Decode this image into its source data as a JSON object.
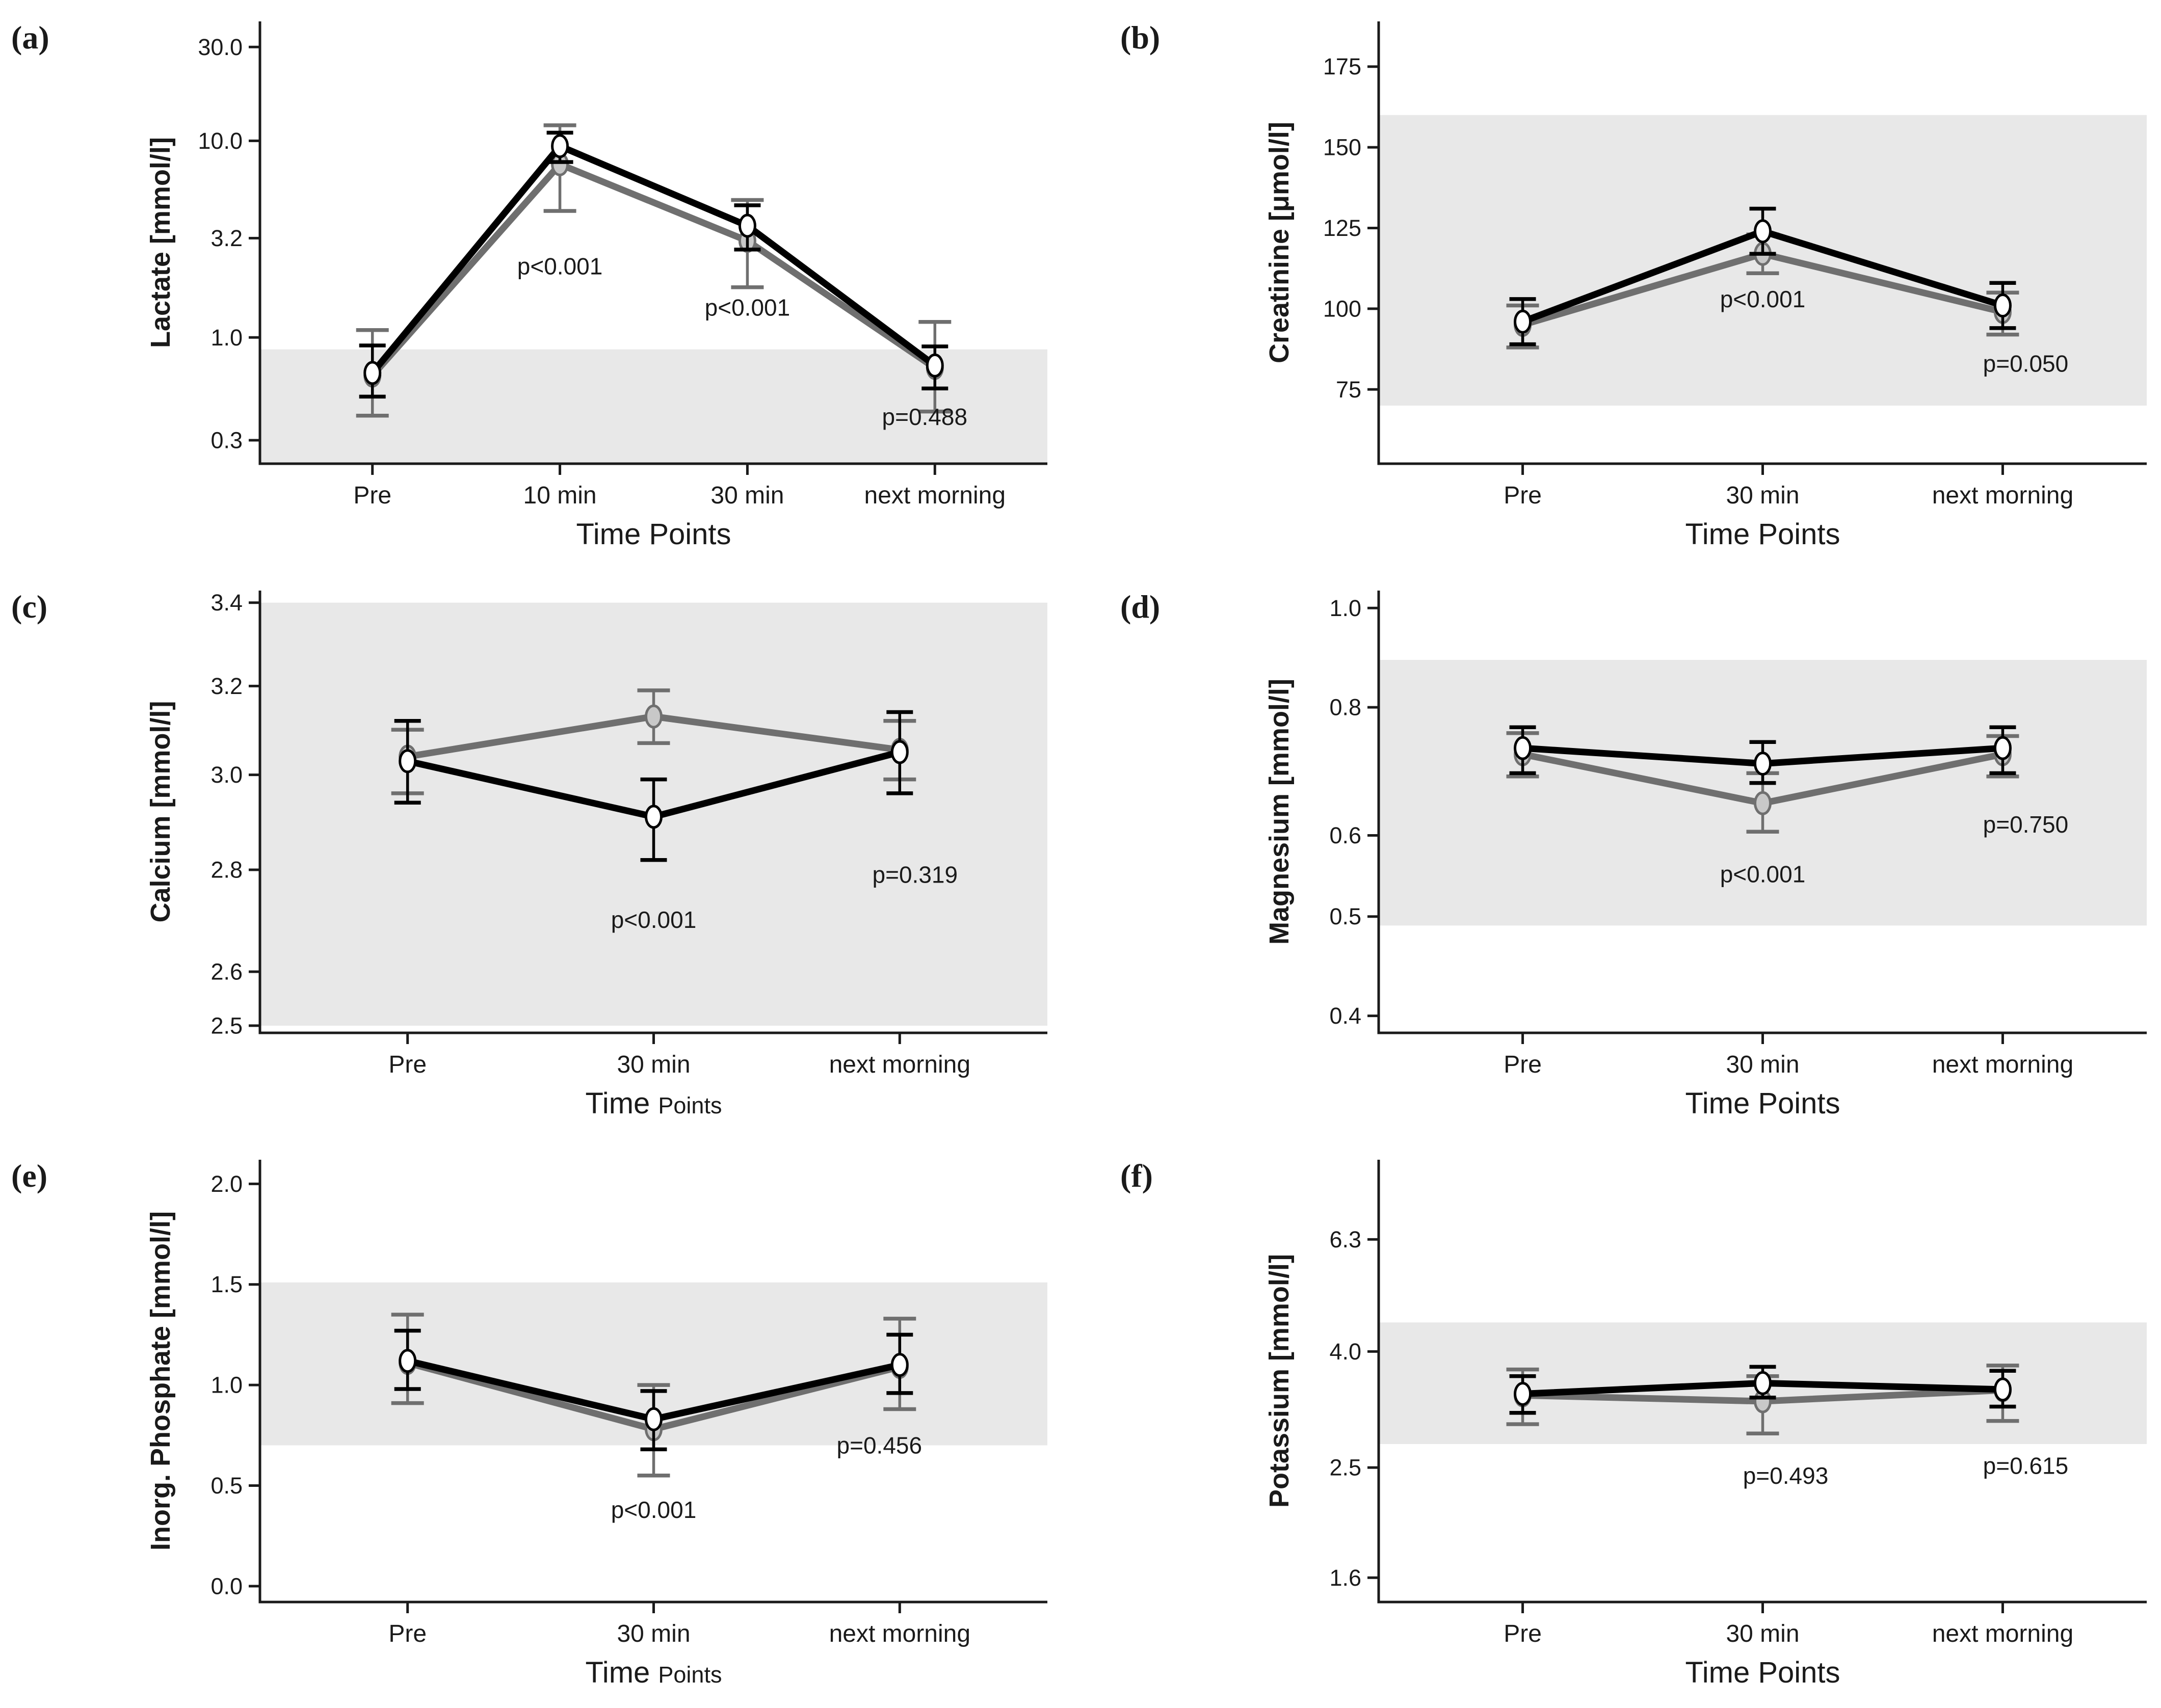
{
  "figure": {
    "background_color": "#ffffff",
    "band_color": "#e8e8e8",
    "axis_color": "#1a1a1a",
    "x_axis_title": "Time Points",
    "x_categories_full": [
      "Pre",
      "10 min",
      "30 min",
      "next morning"
    ]
  },
  "chart_data": [
    {
      "type": "line",
      "panel_label": "(a)",
      "ylabel": "Lactate [mmol/l]",
      "xlabel": "Time Points",
      "xlabel_mixed": false,
      "yscale": "log",
      "ylim": [
        0.228,
        40.5
      ],
      "yticks": [
        0.3,
        1.0,
        3.2,
        10.0,
        30.0
      ],
      "ytick_labels": [
        "0.3",
        "1.0",
        "3.2",
        "10.0",
        "30.0"
      ],
      "categories": [
        "Pre",
        "10 min",
        "30 min",
        "next morning"
      ],
      "normal_range_band": [
        0.228,
        0.87
      ],
      "series": [
        {
          "name": "gray",
          "color": "#6f6f6f",
          "marker_fill": "#c8c8c8",
          "values": [
            0.64,
            7.6,
            3.1,
            0.7
          ],
          "err_lo": [
            0.4,
            4.4,
            1.8,
            0.42
          ],
          "err_hi": [
            1.09,
            12.0,
            5.0,
            1.2
          ]
        },
        {
          "name": "black",
          "color": "#000000",
          "marker_fill": "#ffffff",
          "values": [
            0.66,
            9.4,
            3.7,
            0.72
          ],
          "err_lo": [
            0.5,
            7.8,
            2.8,
            0.55
          ],
          "err_hi": [
            0.91,
            11.0,
            4.7,
            0.9
          ]
        }
      ],
      "annotations": [
        {
          "text": "p<0.001",
          "cat": 1,
          "y": 2.3,
          "dx": 0
        },
        {
          "text": "p<0.001",
          "cat": 2,
          "y": 1.42,
          "dx": 0
        },
        {
          "text": "p=0.488",
          "cat": 3,
          "y": 0.395,
          "dx": -20
        }
      ]
    },
    {
      "type": "line",
      "panel_label": "(b)",
      "ylabel": "Creatinine [μmol/l]",
      "xlabel": "Time Points",
      "xlabel_mixed": false,
      "yscale": "linear",
      "ylim": [
        52,
        189
      ],
      "yticks": [
        75,
        100,
        125,
        150,
        175
      ],
      "ytick_labels": [
        "75",
        "100",
        "125",
        "150",
        "175"
      ],
      "categories": [
        "Pre",
        "30 min",
        "next morning"
      ],
      "normal_range_band": [
        70,
        160
      ],
      "series": [
        {
          "name": "gray",
          "color": "#6f6f6f",
          "marker_fill": "#c8c8c8",
          "values": [
            95,
            117,
            99
          ],
          "err_lo": [
            88,
            111,
            92
          ],
          "err_hi": [
            101,
            123,
            105
          ]
        },
        {
          "name": "black",
          "color": "#000000",
          "marker_fill": "#ffffff",
          "values": [
            96,
            124,
            101
          ],
          "err_lo": [
            89,
            117,
            94
          ],
          "err_hi": [
            103,
            131,
            108
          ]
        }
      ],
      "annotations": [
        {
          "text": "p<0.001",
          "cat": 1,
          "y": 103,
          "dx": 0
        },
        {
          "text": "p=0.050",
          "cat": 2,
          "y": 83,
          "dx": 45
        }
      ]
    },
    {
      "type": "line",
      "panel_label": "(c)",
      "ylabel": "Calcium [mmol/l]",
      "xlabel": "Time Points",
      "xlabel_mixed": true,
      "yscale": "log",
      "ylim": [
        2.487,
        3.43
      ],
      "yticks": [
        2.5,
        2.6,
        2.8,
        3.0,
        3.2,
        3.4
      ],
      "ytick_labels": [
        "2.5",
        "2.6",
        "2.8",
        "3.0",
        "3.2",
        "3.4"
      ],
      "categories": [
        "Pre",
        "30 min",
        "next morning"
      ],
      "normal_range_band": [
        2.5,
        3.4
      ],
      "series": [
        {
          "name": "gray",
          "color": "#6f6f6f",
          "marker_fill": "#c8c8c8",
          "values": [
            3.04,
            3.13,
            3.055
          ],
          "err_lo": [
            2.96,
            3.07,
            2.99
          ],
          "err_hi": [
            3.1,
            3.19,
            3.12
          ]
        },
        {
          "name": "black",
          "color": "#000000",
          "marker_fill": "#ffffff",
          "values": [
            3.03,
            2.91,
            3.05
          ],
          "err_lo": [
            2.94,
            2.82,
            2.96
          ],
          "err_hi": [
            3.12,
            2.99,
            3.14
          ]
        }
      ],
      "annotations": [
        {
          "text": "p<0.001",
          "cat": 1,
          "y": 2.7,
          "dx": 0
        },
        {
          "text": "p=0.319",
          "cat": 2,
          "y": 2.79,
          "dx": 30
        }
      ]
    },
    {
      "type": "line",
      "panel_label": "(d)",
      "ylabel": "Magnesium [mmol/l]",
      "xlabel": "Time Points",
      "xlabel_mixed": false,
      "yscale": "log",
      "ylim": [
        0.385,
        1.04
      ],
      "yticks": [
        0.4,
        0.5,
        0.6,
        0.8,
        1.0
      ],
      "ytick_labels": [
        "0.4",
        "0.5",
        "0.6",
        "0.8",
        "1.0"
      ],
      "categories": [
        "Pre",
        "30 min",
        "next morning"
      ],
      "normal_range_band": [
        0.49,
        0.89
      ],
      "series": [
        {
          "name": "gray",
          "color": "#6f6f6f",
          "marker_fill": "#c8c8c8",
          "values": [
            0.72,
            0.645,
            0.72
          ],
          "err_lo": [
            0.685,
            0.605,
            0.685
          ],
          "err_hi": [
            0.755,
            0.69,
            0.75
          ]
        },
        {
          "name": "black",
          "color": "#000000",
          "marker_fill": "#ffffff",
          "values": [
            0.73,
            0.705,
            0.73
          ],
          "err_lo": [
            0.69,
            0.675,
            0.69
          ],
          "err_hi": [
            0.765,
            0.74,
            0.765
          ]
        }
      ],
      "annotations": [
        {
          "text": "p<0.001",
          "cat": 1,
          "y": 0.55,
          "dx": 0
        },
        {
          "text": "p=0.750",
          "cat": 2,
          "y": 0.615,
          "dx": 45
        }
      ]
    },
    {
      "type": "line",
      "panel_label": "(e)",
      "ylabel": "Inorg. Phosphate [mmol/l]",
      "xlabel": "Time Points",
      "xlabel_mixed": true,
      "yscale": "linear",
      "ylim": [
        -0.079,
        2.12
      ],
      "yticks": [
        0.0,
        0.5,
        1.0,
        1.5,
        2.0
      ],
      "ytick_labels": [
        "0.0",
        "0.5",
        "1.0",
        "1.5",
        "2.0"
      ],
      "categories": [
        "Pre",
        "30 min",
        "next morning"
      ],
      "normal_range_band": [
        0.7,
        1.51
      ],
      "series": [
        {
          "name": "gray",
          "color": "#6f6f6f",
          "marker_fill": "#c8c8c8",
          "values": [
            1.11,
            0.78,
            1.09
          ],
          "err_lo": [
            0.91,
            0.55,
            0.88
          ],
          "err_hi": [
            1.35,
            1.0,
            1.33
          ]
        },
        {
          "name": "black",
          "color": "#000000",
          "marker_fill": "#ffffff",
          "values": [
            1.12,
            0.83,
            1.1
          ],
          "err_lo": [
            0.98,
            0.68,
            0.96
          ],
          "err_hi": [
            1.27,
            0.97,
            1.25
          ]
        }
      ],
      "annotations": [
        {
          "text": "p<0.001",
          "cat": 1,
          "y": 0.38,
          "dx": 0
        },
        {
          "text": "p=0.456",
          "cat": 2,
          "y": 0.7,
          "dx": -40
        }
      ]
    },
    {
      "type": "line",
      "panel_label": "(f)",
      "ylabel": "Potassium [mmol/l]",
      "xlabel": "Time Points",
      "xlabel_mixed": false,
      "yscale": "log",
      "ylim": [
        1.45,
        8.7
      ],
      "yticks": [
        1.6,
        2.5,
        4.0,
        6.3
      ],
      "ytick_labels": [
        "1.6",
        "2.5",
        "4.0",
        "6.3"
      ],
      "categories": [
        "Pre",
        "30 min",
        "next morning"
      ],
      "normal_range_band": [
        2.75,
        4.5
      ],
      "series": [
        {
          "name": "gray",
          "color": "#6f6f6f",
          "marker_fill": "#c8c8c8",
          "values": [
            3.35,
            3.27,
            3.42
          ],
          "err_lo": [
            2.98,
            2.87,
            3.02
          ],
          "err_hi": [
            3.72,
            3.62,
            3.78
          ]
        },
        {
          "name": "black",
          "color": "#000000",
          "marker_fill": "#ffffff",
          "values": [
            3.37,
            3.52,
            3.43
          ],
          "err_lo": [
            3.12,
            3.32,
            3.2
          ],
          "err_hi": [
            3.62,
            3.76,
            3.7
          ]
        }
      ],
      "annotations": [
        {
          "text": "p=0.493",
          "cat": 1,
          "y": 2.42,
          "dx": 45
        },
        {
          "text": "p=0.615",
          "cat": 2,
          "y": 2.52,
          "dx": 45
        }
      ]
    }
  ]
}
